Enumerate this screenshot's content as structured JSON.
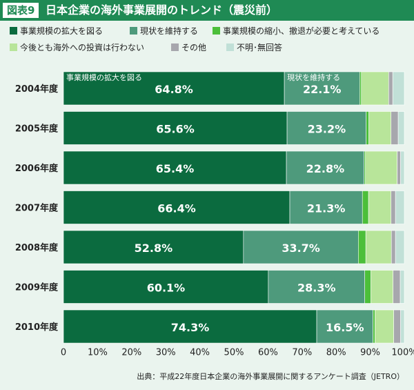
{
  "title_badge": "図表9",
  "title": "日本企業の海外事業展開のトレンド（震災前）",
  "legend": [
    {
      "label": "事業規模の拡大を図る",
      "color": "#0b6b3f"
    },
    {
      "label": "現状を維持する",
      "color": "#4e9a7c"
    },
    {
      "label": "事業規模の縮小、撤退が必要と考えている",
      "color": "#4cbf3a"
    },
    {
      "label": "今後とも海外への投資は行わない",
      "color": "#b8e59a"
    },
    {
      "label": "その他",
      "color": "#a7a7ad"
    },
    {
      "label": "不明･無回答",
      "color": "#c1e0d7"
    }
  ],
  "source": "出典：平成22年度日本企業の海外事業展開に関するアンケート調査（JETRO）",
  "chart_data": {
    "type": "bar",
    "orientation": "horizontal",
    "stacked": true,
    "categories": [
      "2004年度",
      "2005年度",
      "2006年度",
      "2007年度",
      "2008年度",
      "2009年度",
      "2010年度"
    ],
    "series": [
      {
        "name": "事業規模の拡大を図る",
        "values": [
          64.8,
          65.6,
          65.4,
          66.4,
          52.8,
          60.1,
          74.3
        ]
      },
      {
        "name": "現状を維持する",
        "values": [
          22.1,
          23.2,
          22.8,
          21.3,
          33.7,
          28.3,
          16.5
        ]
      },
      {
        "name": "事業規模の縮小、撤退が必要と考えている",
        "values": [
          0.5,
          0.8,
          0.4,
          1.8,
          2.2,
          1.8,
          0.6
        ]
      },
      {
        "name": "今後とも海外への投資は行わない",
        "values": [
          8.0,
          6.5,
          9.3,
          6.6,
          7.5,
          6.5,
          5.5
        ]
      },
      {
        "name": "その他",
        "values": [
          1.2,
          2.1,
          1.0,
          1.3,
          1.2,
          2.1,
          2.0
        ]
      },
      {
        "name": "不明･無回答",
        "values": [
          3.4,
          1.8,
          1.1,
          2.6,
          2.6,
          1.2,
          1.1
        ]
      }
    ],
    "data_labels": {
      "series_indices": [
        0,
        1
      ],
      "suffix": "%"
    },
    "in_bar_series_labels": [
      "事業規模の拡大を図る",
      "現状を維持する"
    ],
    "x_ticks": [
      "0",
      "10%",
      "20%",
      "30%",
      "40%",
      "50%",
      "60%",
      "70%",
      "80%",
      "90%",
      "100%"
    ],
    "xlim": [
      0,
      100
    ]
  }
}
